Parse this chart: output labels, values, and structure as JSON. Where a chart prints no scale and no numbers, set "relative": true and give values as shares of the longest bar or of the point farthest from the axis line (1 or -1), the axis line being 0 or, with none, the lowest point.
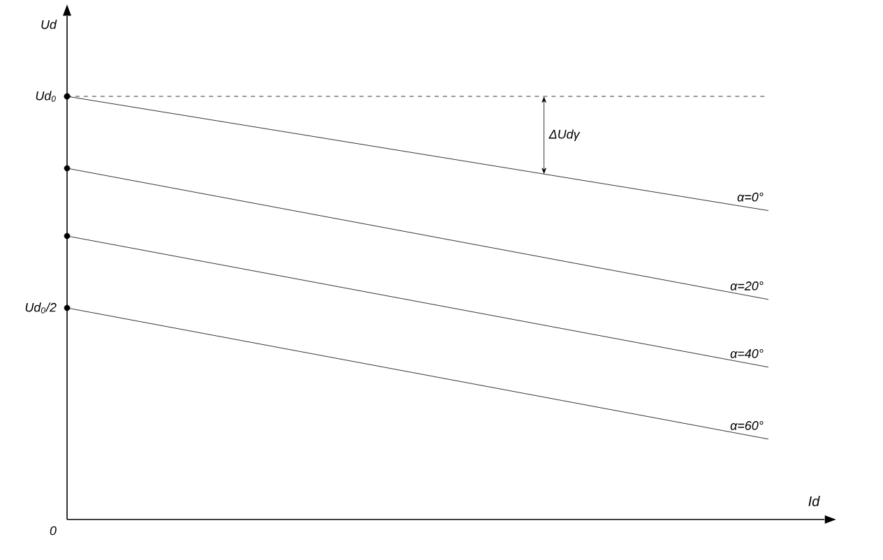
{
  "chart_data": {
    "type": "line",
    "xlabel": "Id",
    "categories": [
      null,
      null
    ],
    "relative": true,
    "marker": "circle",
    "line_style": "solid",
    "ref_lines": [
      {
        "axis": "y",
        "value": 1,
        "line_style": "dashed",
        "color": "#000000"
      }
    ],
    "annotations": [
      "ΔUdγ",
      "Ud$_{0}$",
      "Ud$_{0}$/2",
      "0",
      "Ud"
    ],
    "series": [
      {
        "name": "α=0°",
        "color": "#000000",
        "values": [
          1,
          0.73
        ]
      },
      {
        "name": "α=20°",
        "color": "#000000",
        "values": [
          0.83,
          0.52
        ]
      },
      {
        "name": "α=40°",
        "color": "#000000",
        "values": [
          0.67,
          0.36
        ]
      },
      {
        "name": "α=60°",
        "color": "#000000",
        "values": [
          0.5,
          0.19
        ]
      }
    ]
  }
}
